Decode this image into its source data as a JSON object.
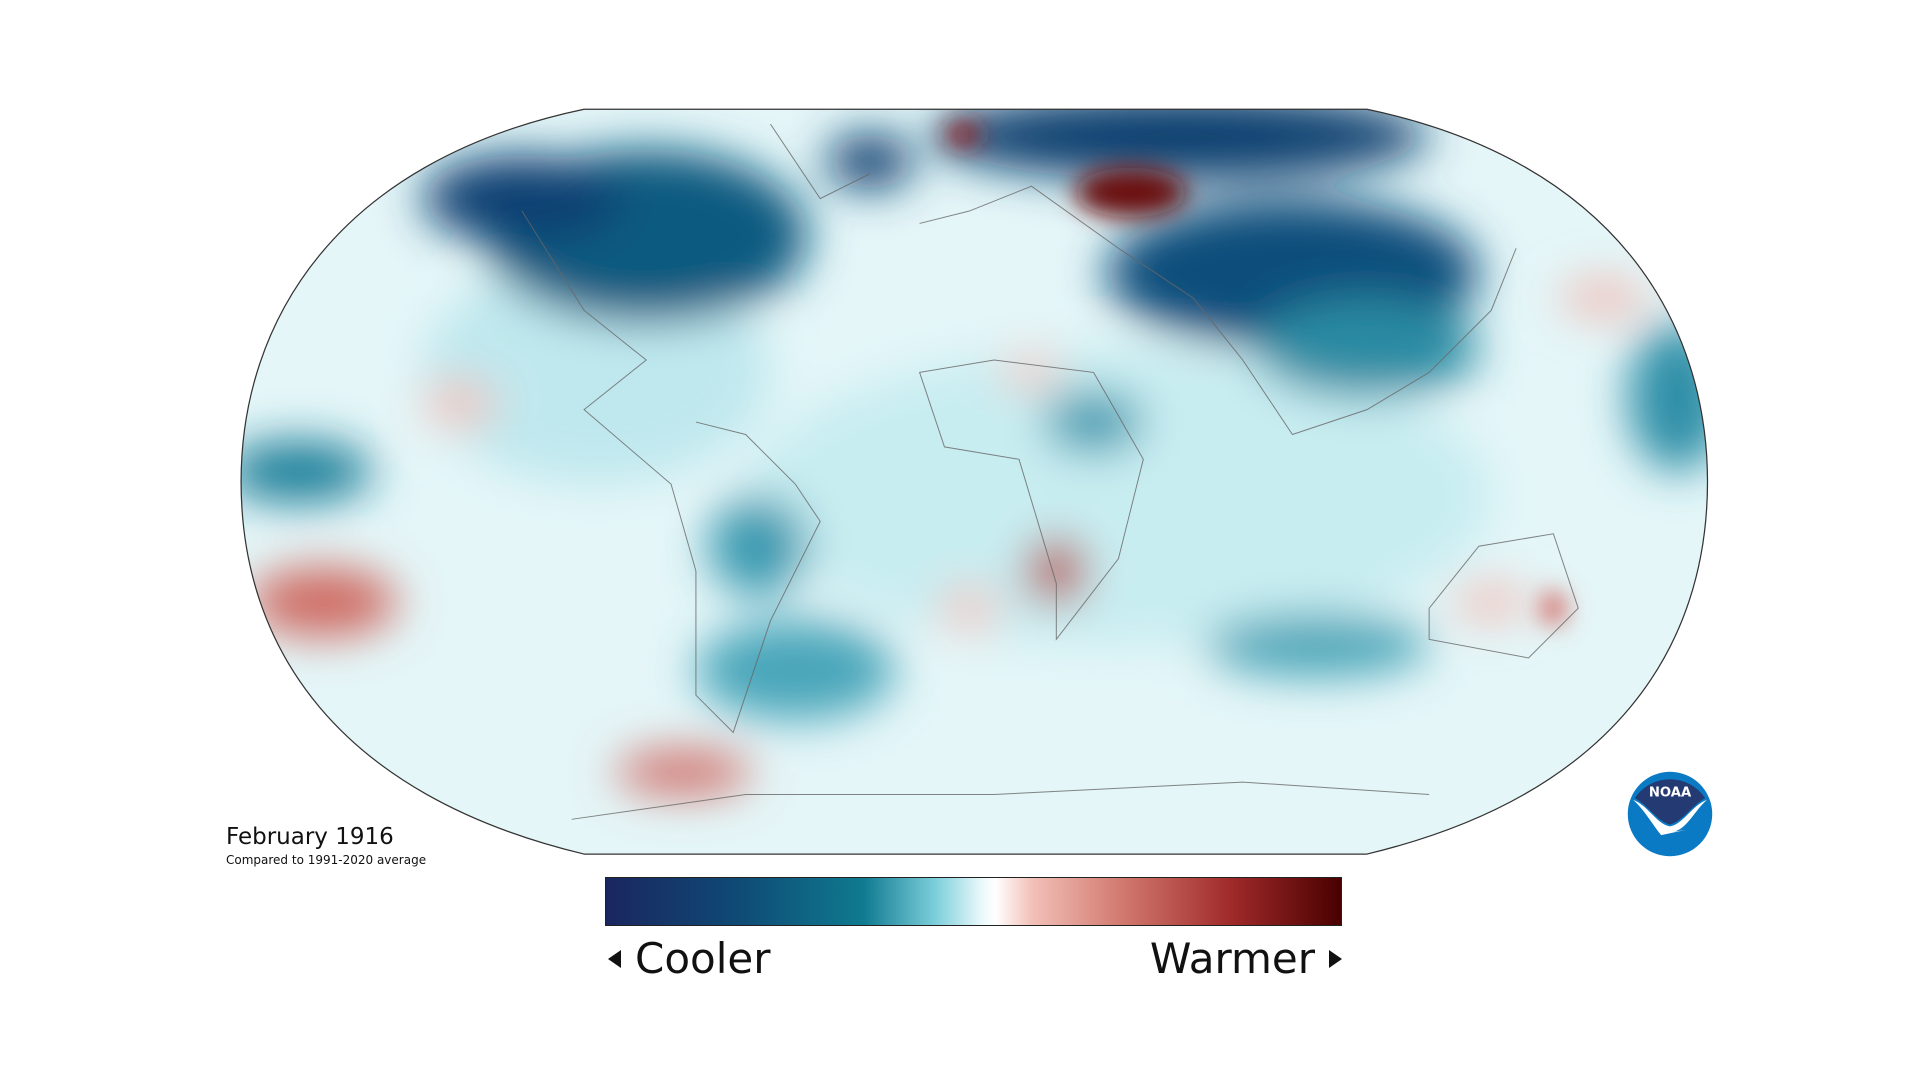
{
  "map": {
    "title": "February 1916",
    "subtitle": "Compared to 1991-2020 average",
    "projection": "Robinson",
    "colors": {
      "cold_extreme": "#1a2660",
      "cold": "#0f7a90",
      "cool": "#a8e2ea",
      "neutral": "#ffffff",
      "warm": "#f2b8b0",
      "hot": "#c0504a",
      "hot_extreme": "#4a0000"
    }
  },
  "legend": {
    "cooler_label": "Cooler",
    "warmer_label": "Warmer"
  },
  "logo": {
    "text": "NOAA"
  }
}
